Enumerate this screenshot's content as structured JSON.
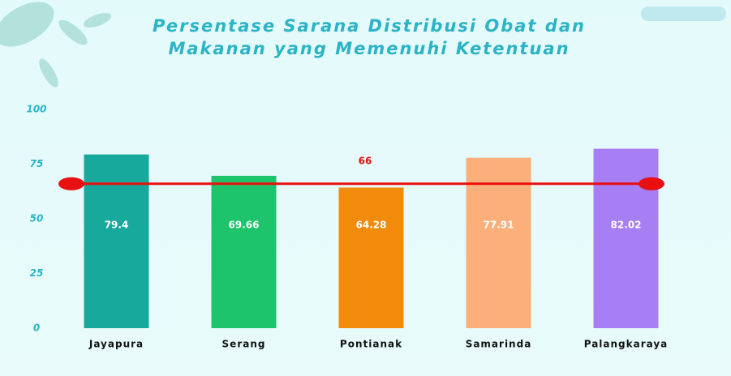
{
  "chart_data": {
    "type": "bar",
    "title": "Persentase Sarana Distribusi Obat dan Makanan yang Memenuhi Ketentuan",
    "categories": [
      "Jayapura",
      "Serang",
      "Pontianak",
      "Samarinda",
      "Palangkaraya"
    ],
    "values": [
      79.4,
      69.66,
      64.28,
      77.91,
      82.02
    ],
    "colors": [
      "#17a99b",
      "#1ec46c",
      "#f28b0c",
      "#fbb07c",
      "#a77ef4"
    ],
    "ylim": [
      0,
      100
    ],
    "yticks": [
      0,
      25,
      50,
      75,
      100
    ],
    "grid": false,
    "reference_line": {
      "value": 66,
      "color": "#e81010"
    }
  }
}
